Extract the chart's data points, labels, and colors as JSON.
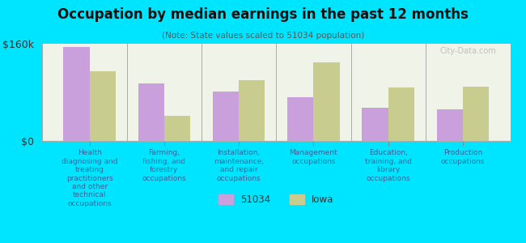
{
  "title": "Occupation by median earnings in the past 12 months",
  "subtitle": "(Note: State values scaled to 51034 population)",
  "categories": [
    "Health\ndiagnosing and\ntreating\npractitioners\nand other\ntechnical\noccupations",
    "Farming,\nfishing, and\nforestry\noccupations",
    "Installation,\nmaintenance,\nand repair\noccupations",
    "Management\noccupations",
    "Education,\ntraining, and\nlibrary\noccupations",
    "Production\noccupations"
  ],
  "values_51034": [
    155000,
    95000,
    82000,
    72000,
    55000,
    52000
  ],
  "values_iowa": [
    115000,
    42000,
    100000,
    130000,
    88000,
    90000
  ],
  "ylim": [
    0,
    160000
  ],
  "yticks": [
    0,
    160000
  ],
  "ytick_labels": [
    "$0",
    "$160k"
  ],
  "color_51034": "#c9a0dc",
  "color_iowa": "#c8cc8e",
  "background_color": "#00e5ff",
  "plot_bg_color": "#f0f4e8",
  "legend_label_51034": "51034",
  "legend_label_iowa": "Iowa",
  "watermark": "City-Data.com"
}
